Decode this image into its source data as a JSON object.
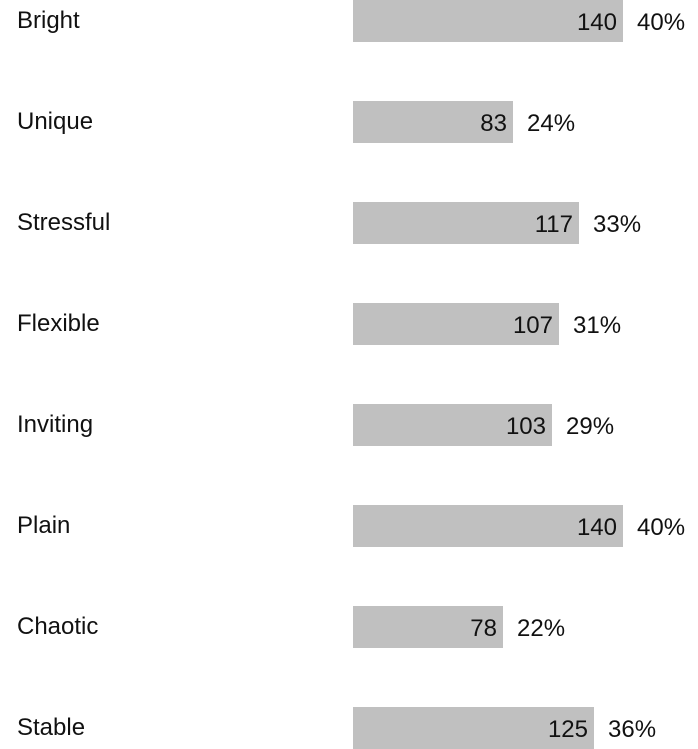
{
  "chart_data": {
    "type": "bar",
    "orientation": "horizontal",
    "categories": [
      "Bright",
      "Unique",
      "Stressful",
      "Flexible",
      "Inviting",
      "Plain",
      "Chaotic",
      "Stable"
    ],
    "values": [
      140,
      83,
      117,
      107,
      103,
      140,
      78,
      125
    ],
    "percent_labels": [
      "40%",
      "24%",
      "33%",
      "31%",
      "29%",
      "40%",
      "22%",
      "36%"
    ],
    "bar_color": "#c0c0c0",
    "grid": false,
    "legend": "none",
    "title": "",
    "xlabel": "",
    "ylabel": ""
  }
}
